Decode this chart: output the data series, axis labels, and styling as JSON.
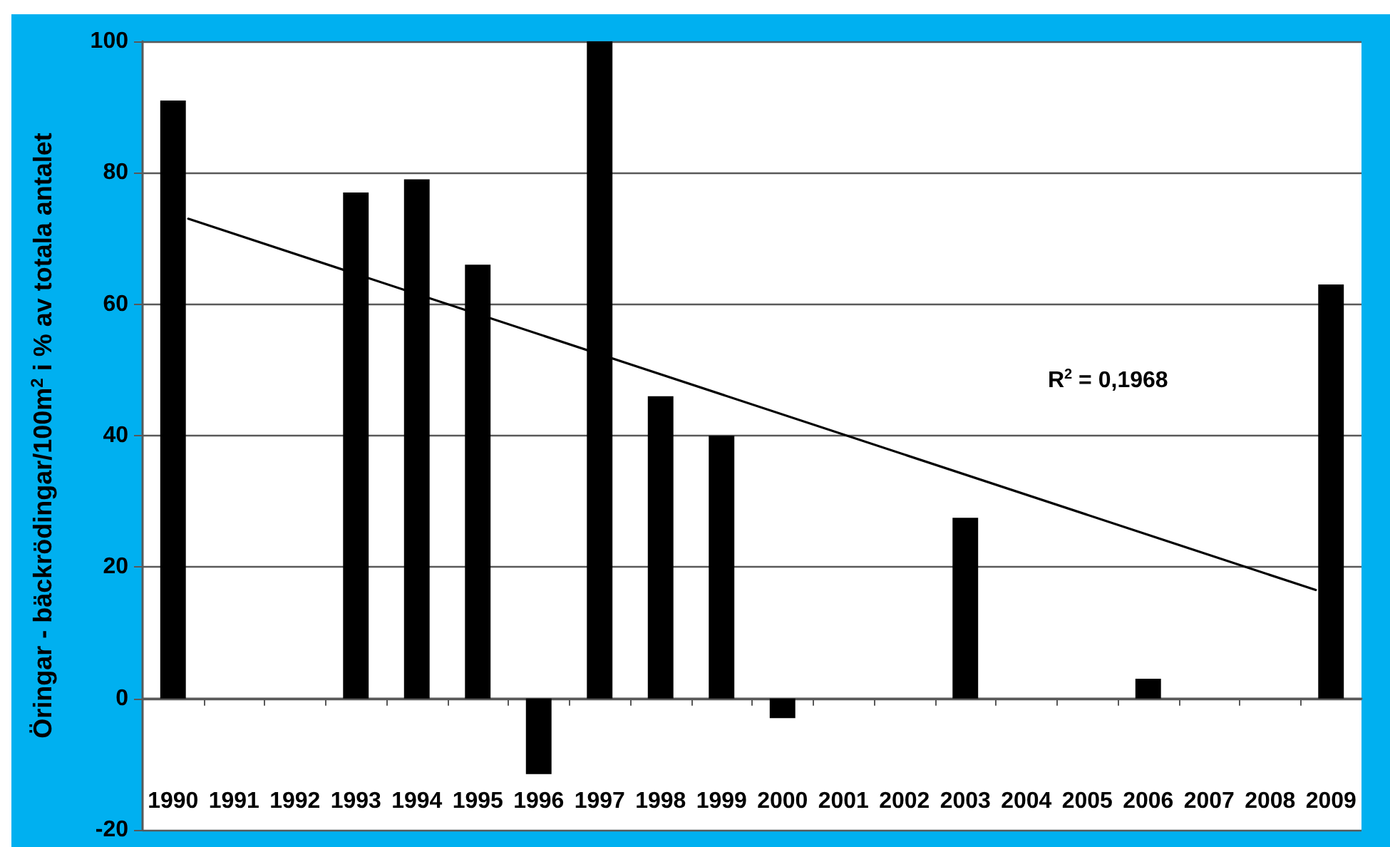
{
  "chart_data": {
    "type": "bar",
    "ylabel": "Öringar - bäckrödingar/100m$^{2}$ i % av totala antalet",
    "x": [
      1990,
      1991,
      1992,
      1993,
      1994,
      1995,
      1996,
      1997,
      1998,
      1999,
      2000,
      2001,
      2002,
      2003,
      2004,
      2005,
      2006,
      2007,
      2008,
      2009
    ],
    "series": [
      {
        "color": "#000000",
        "values": [
          91,
          null,
          null,
          77,
          79,
          66,
          -11.5,
          100,
          46,
          40,
          -3,
          null,
          null,
          27.5,
          null,
          null,
          3,
          null,
          null,
          63
        ]
      },
      {
        "type": "line",
        "color": "#000000",
        "x": [
          1990.25,
          2008.75
        ],
        "values": [
          73,
          16.5
        ]
      }
    ],
    "xlim": [
      1989.5,
      2009.5
    ],
    "xticks": [
      1990,
      {
        "value": 1990.5,
        "label": null
      },
      1991,
      {
        "value": 1991.5,
        "label": null
      },
      1992,
      {
        "value": 1992.5,
        "label": null
      },
      1993,
      {
        "value": 1993.5,
        "label": null
      },
      1994,
      {
        "value": 1994.5,
        "label": null
      },
      1995,
      {
        "value": 1995.5,
        "label": null
      },
      1996,
      {
        "value": 1996.5,
        "label": null
      },
      1997,
      {
        "value": 1997.5,
        "label": null
      },
      1998,
      {
        "value": 1998.5,
        "label": null
      },
      1999,
      {
        "value": 1999.5,
        "label": null
      },
      2000,
      {
        "value": 2000.5,
        "label": null
      },
      2001,
      {
        "value": 2001.5,
        "label": null
      },
      2002,
      {
        "value": 2002.5,
        "label": null
      },
      2003,
      {
        "value": 2003.5,
        "label": null
      },
      2004,
      {
        "value": 2004.5,
        "label": null
      },
      2005,
      {
        "value": 2005.5,
        "label": null
      },
      2006,
      {
        "value": 2006.5,
        "label": null
      },
      2007,
      {
        "value": 2007.5,
        "label": null
      },
      2008,
      {
        "value": 2008.5,
        "label": null
      },
      2009
    ],
    "ylim": [
      -20,
      100
    ],
    "yticks": [
      -20,
      0,
      20,
      40,
      60,
      80,
      100
    ],
    "grid": "y",
    "marker": "none",
    "line_style": "solid",
    "annotations": [
      "R$^{2}$ = 0,1968"
    ]
  }
}
